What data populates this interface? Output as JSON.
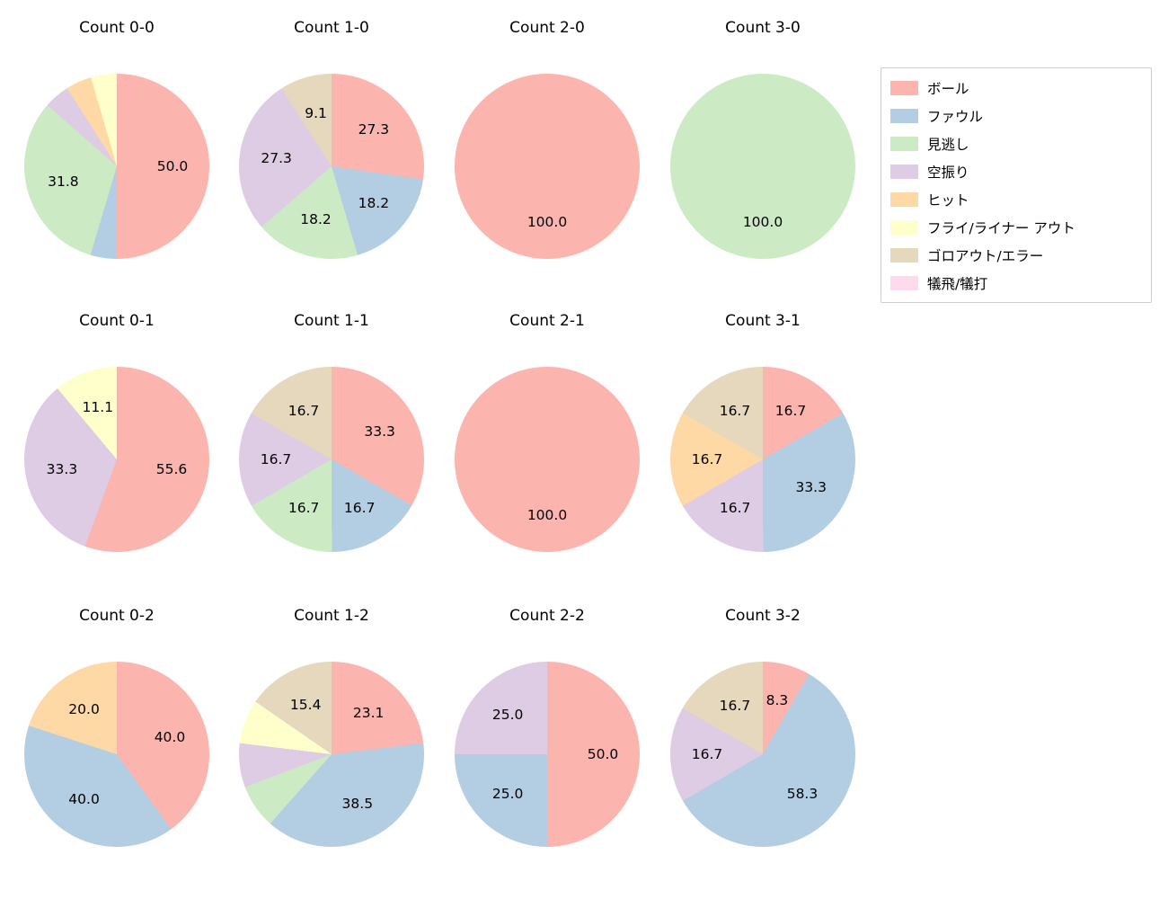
{
  "chart_data": [
    {
      "type": "pie",
      "title": "Count 0-0",
      "slices": [
        {
          "category": "ボール",
          "value": 50.0,
          "label": "50.0"
        },
        {
          "category": "ファウル",
          "value": 4.5,
          "label": ""
        },
        {
          "category": "見逃し",
          "value": 31.8,
          "label": "31.8"
        },
        {
          "category": "空振り",
          "value": 4.5,
          "label": ""
        },
        {
          "category": "ヒット",
          "value": 4.5,
          "label": ""
        },
        {
          "category": "フライ/ライナー アウト",
          "value": 4.5,
          "label": ""
        }
      ]
    },
    {
      "type": "pie",
      "title": "Count 1-0",
      "slices": [
        {
          "category": "ボール",
          "value": 27.3,
          "label": "27.3"
        },
        {
          "category": "ファウル",
          "value": 18.2,
          "label": "18.2"
        },
        {
          "category": "見逃し",
          "value": 18.2,
          "label": "18.2"
        },
        {
          "category": "空振り",
          "value": 27.3,
          "label": "27.3"
        },
        {
          "category": "ゴロアウト/エラー",
          "value": 9.1,
          "label": "9.1"
        }
      ]
    },
    {
      "type": "pie",
      "title": "Count 2-0",
      "slices": [
        {
          "category": "ボール",
          "value": 100.0,
          "label": "100.0"
        }
      ]
    },
    {
      "type": "pie",
      "title": "Count 3-0",
      "slices": [
        {
          "category": "見逃し",
          "value": 100.0,
          "label": "100.0"
        }
      ]
    },
    {
      "type": "pie",
      "title": "Count 0-1",
      "slices": [
        {
          "category": "ボール",
          "value": 55.6,
          "label": "55.6"
        },
        {
          "category": "空振り",
          "value": 33.3,
          "label": "33.3"
        },
        {
          "category": "フライ/ライナー アウト",
          "value": 11.1,
          "label": "11.1"
        }
      ]
    },
    {
      "type": "pie",
      "title": "Count 1-1",
      "slices": [
        {
          "category": "ボール",
          "value": 33.3,
          "label": "33.3"
        },
        {
          "category": "ファウル",
          "value": 16.7,
          "label": "16.7"
        },
        {
          "category": "見逃し",
          "value": 16.7,
          "label": "16.7"
        },
        {
          "category": "空振り",
          "value": 16.7,
          "label": "16.7"
        },
        {
          "category": "ゴロアウト/エラー",
          "value": 16.7,
          "label": "16.7"
        }
      ]
    },
    {
      "type": "pie",
      "title": "Count 2-1",
      "slices": [
        {
          "category": "ボール",
          "value": 100.0,
          "label": "100.0"
        }
      ]
    },
    {
      "type": "pie",
      "title": "Count 3-1",
      "slices": [
        {
          "category": "ボール",
          "value": 16.7,
          "label": "16.7"
        },
        {
          "category": "ファウル",
          "value": 33.3,
          "label": "33.3"
        },
        {
          "category": "空振り",
          "value": 16.7,
          "label": "16.7"
        },
        {
          "category": "ヒット",
          "value": 16.7,
          "label": "16.7"
        },
        {
          "category": "ゴロアウト/エラー",
          "value": 16.7,
          "label": "16.7"
        }
      ]
    },
    {
      "type": "pie",
      "title": "Count 0-2",
      "slices": [
        {
          "category": "ボール",
          "value": 40.0,
          "label": "40.0"
        },
        {
          "category": "ファウル",
          "value": 40.0,
          "label": "40.0"
        },
        {
          "category": "ヒット",
          "value": 20.0,
          "label": "20.0"
        }
      ]
    },
    {
      "type": "pie",
      "title": "Count 1-2",
      "slices": [
        {
          "category": "ボール",
          "value": 23.1,
          "label": "23.1"
        },
        {
          "category": "ファウル",
          "value": 38.5,
          "label": "38.5"
        },
        {
          "category": "見逃し",
          "value": 7.7,
          "label": ""
        },
        {
          "category": "空振り",
          "value": 7.7,
          "label": ""
        },
        {
          "category": "フライ/ライナー アウト",
          "value": 7.7,
          "label": ""
        },
        {
          "category": "ゴロアウト/エラー",
          "value": 15.4,
          "label": "15.4"
        }
      ]
    },
    {
      "type": "pie",
      "title": "Count 2-2",
      "slices": [
        {
          "category": "ボール",
          "value": 50.0,
          "label": "50.0"
        },
        {
          "category": "ファウル",
          "value": 25.0,
          "label": "25.0"
        },
        {
          "category": "空振り",
          "value": 25.0,
          "label": "25.0"
        }
      ]
    },
    {
      "type": "pie",
      "title": "Count 3-2",
      "slices": [
        {
          "category": "ボール",
          "value": 8.3,
          "label": "8.3"
        },
        {
          "category": "ファウル",
          "value": 58.3,
          "label": "58.3"
        },
        {
          "category": "空振り",
          "value": 16.7,
          "label": "16.7"
        },
        {
          "category": "ゴロアウト/エラー",
          "value": 16.7,
          "label": "16.7"
        }
      ]
    }
  ],
  "legend": {
    "items": [
      {
        "label": "ボール",
        "color": "#fbb4ae"
      },
      {
        "label": "ファウル",
        "color": "#b3cde3"
      },
      {
        "label": "見逃し",
        "color": "#ccebc5"
      },
      {
        "label": "空振り",
        "color": "#decbe4"
      },
      {
        "label": "ヒット",
        "color": "#fed9a6"
      },
      {
        "label": "フライ/ライナー アウト",
        "color": "#ffffcc"
      },
      {
        "label": "ゴロアウト/エラー",
        "color": "#e5d8bd"
      },
      {
        "label": "犠飛/犠打",
        "color": "#fddaec"
      }
    ]
  }
}
